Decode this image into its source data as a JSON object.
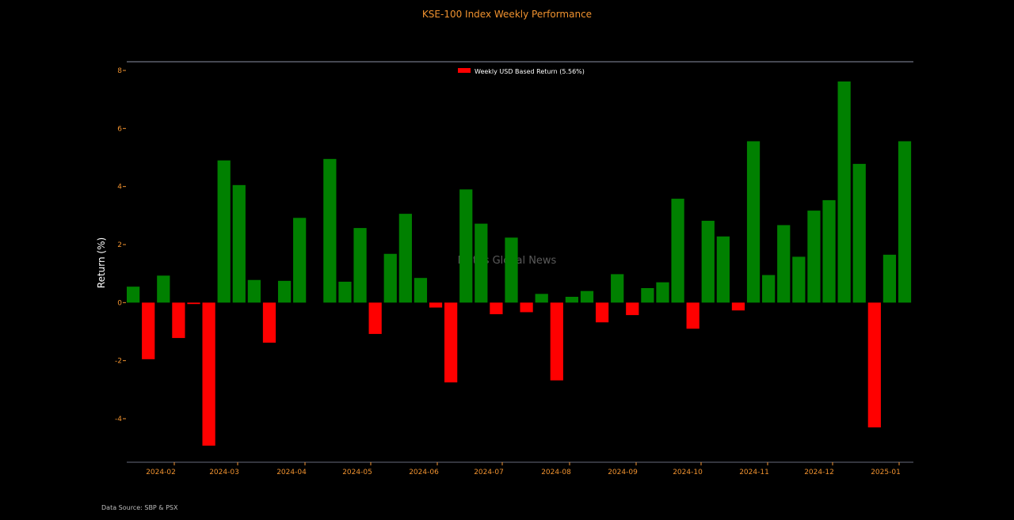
{
  "chart_data": {
    "type": "bar",
    "title": "KSE-100 Index Weekly Performance",
    "ylabel": "Return (%)",
    "xlabel": "",
    "ylim": [
      -5.5,
      8.3
    ],
    "yticks": [
      -4,
      -2,
      0,
      2,
      4,
      6,
      8
    ],
    "xticks": [
      "2024-02",
      "2024-03",
      "2024-04",
      "2024-05",
      "2024-06",
      "2024-07",
      "2024-08",
      "2024-09",
      "2024-10",
      "2024-11",
      "2024-12",
      "2025-01"
    ],
    "series": [
      {
        "name": "Weekly USD Based Return (5.56%)",
        "values": [
          0.55,
          -1.95,
          0.93,
          -1.22,
          -0.05,
          -4.93,
          4.9,
          4.05,
          0.78,
          -1.38,
          0.75,
          2.92,
          0.0,
          4.95,
          0.72,
          2.57,
          -1.08,
          1.68,
          3.06,
          0.85,
          -0.17,
          -2.75,
          3.9,
          2.72,
          -0.4,
          2.24,
          -0.33,
          0.3,
          -2.68,
          0.2,
          0.4,
          -0.68,
          0.98,
          -0.43,
          0.5,
          0.7,
          3.58,
          -0.9,
          2.82,
          2.28,
          -0.27,
          5.56,
          0.95,
          2.67,
          1.58,
          3.17,
          3.53,
          7.62,
          4.78,
          -4.3,
          1.65,
          5.56
        ]
      }
    ],
    "colors": {
      "positive": "#008000",
      "negative": "#ff0000",
      "accent": "#f0922f",
      "axis": "#666a7d"
    },
    "legend_position": "top-center",
    "grid": false,
    "watermark": "Mettis Global News",
    "source": "Data Source: SBP & PSX"
  }
}
